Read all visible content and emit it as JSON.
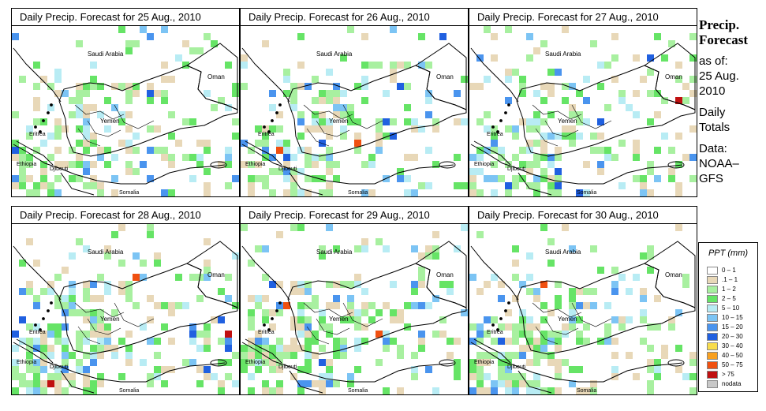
{
  "panels": [
    {
      "title": "Daily Precip. Forecast for  25 Aug., 2010"
    },
    {
      "title": "Daily Precip. Forecast for  26 Aug., 2010"
    },
    {
      "title": "Daily Precip. Forecast for  27 Aug., 2010"
    },
    {
      "title": "Daily Precip. Forecast for  28 Aug., 2010"
    },
    {
      "title": "Daily Precip. Forecast for  29 Aug., 2010"
    },
    {
      "title": "Daily Precip. Forecast for  30 Aug., 2010"
    }
  ],
  "map_labels": {
    "saudi": "Saudi Arabia",
    "oman": "Oman",
    "yemen": "Yemen",
    "eritrea": "Eritrea",
    "ethiopia": "Ethiopia",
    "djibouti": "Djibouti",
    "somalia": "Somalia"
  },
  "side": {
    "title_line1": "Precip.",
    "title_line2": "Forecast",
    "asof_line1": "as of:",
    "asof_line2": "25 Aug.",
    "asof_line3": "2010",
    "totals_line1": "Daily",
    "totals_line2": "Totals",
    "data_line1": "Data:",
    "data_line2": "NOAA–",
    "data_line3": "GFS"
  },
  "legend": {
    "title": "PPT (mm)",
    "items": [
      {
        "label": "0 – 1",
        "color": "#ffffff"
      },
      {
        "label": ".1 – 1",
        "color": "#e8d8b8"
      },
      {
        "label": "1 – 2",
        "color": "#a8f0a0"
      },
      {
        "label": "2 – 5",
        "color": "#66e466"
      },
      {
        "label": "5 – 10",
        "color": "#b8ecf4"
      },
      {
        "label": "10 – 15",
        "color": "#7cc4f4"
      },
      {
        "label": "15 – 20",
        "color": "#4a94ee"
      },
      {
        "label": "20 – 30",
        "color": "#2060e0"
      },
      {
        "label": "30 – 40",
        "color": "#f8dc4c"
      },
      {
        "label": "40 – 50",
        "color": "#f8a020"
      },
      {
        "label": "50 – 75",
        "color": "#f05010"
      },
      {
        "label": "> 75",
        "color": "#c01010"
      },
      {
        "label": "nodata",
        "color": "#c8c8c8"
      }
    ]
  }
}
